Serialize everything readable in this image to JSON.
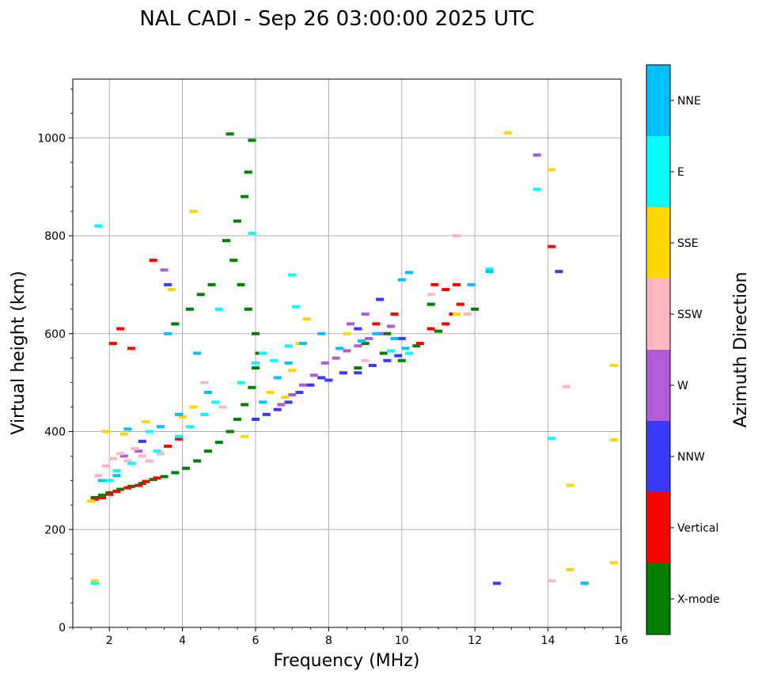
{
  "chart_data": {
    "type": "scatter",
    "title": "NAL CADI - Sep 26 03:00:00 2025 UTC",
    "xlabel": "Frequency (MHz)",
    "ylabel": "Virtual height (km)",
    "xlim": [
      1,
      16
    ],
    "ylim": [
      0,
      1120
    ],
    "x_ticks": [
      2,
      4,
      6,
      8,
      10,
      12,
      14,
      16
    ],
    "y_ticks": [
      0,
      200,
      400,
      600,
      800,
      1000
    ],
    "grid": true,
    "colorbar": {
      "label": "Azimuth Direction",
      "categories": [
        "X-mode",
        "Vertical",
        "NNW",
        "W",
        "SSW",
        "SSE",
        "E",
        "NNE"
      ],
      "colors": [
        "#008000",
        "#ff0000",
        "#3a3aff",
        "#b25bd6",
        "#ffb6c1",
        "#ffd700",
        "#00ffff",
        "#00bfff"
      ]
    },
    "series": [
      {
        "name": "X-mode",
        "points": [
          [
            1.6,
            265
          ],
          [
            1.8,
            270
          ],
          [
            2.0,
            275
          ],
          [
            2.3,
            282
          ],
          [
            2.6,
            288
          ],
          [
            2.9,
            294
          ],
          [
            3.2,
            302
          ],
          [
            3.5,
            308
          ],
          [
            3.8,
            316
          ],
          [
            4.1,
            325
          ],
          [
            4.4,
            340
          ],
          [
            4.7,
            360
          ],
          [
            5.0,
            378
          ],
          [
            5.3,
            400
          ],
          [
            5.5,
            425
          ],
          [
            5.7,
            455
          ],
          [
            5.9,
            490
          ],
          [
            6.0,
            530
          ],
          [
            6.1,
            560
          ],
          [
            6.0,
            600
          ],
          [
            5.8,
            650
          ],
          [
            5.6,
            700
          ],
          [
            5.4,
            750
          ],
          [
            5.2,
            790
          ],
          [
            5.5,
            830
          ],
          [
            5.7,
            880
          ],
          [
            5.8,
            930
          ],
          [
            5.9,
            995
          ],
          [
            5.3,
            1008
          ],
          [
            4.2,
            650
          ],
          [
            4.5,
            680
          ],
          [
            4.8,
            700
          ],
          [
            3.8,
            620
          ],
          [
            9.0,
            580
          ],
          [
            9.5,
            560
          ],
          [
            10.0,
            545
          ],
          [
            10.4,
            575
          ],
          [
            11.0,
            605
          ],
          [
            11.5,
            640
          ],
          [
            12.0,
            650
          ],
          [
            8.8,
            530
          ],
          [
            9.6,
            600
          ],
          [
            10.8,
            660
          ]
        ]
      },
      {
        "name": "Vertical",
        "points": [
          [
            1.6,
            262
          ],
          [
            1.8,
            265
          ],
          [
            2.0,
            272
          ],
          [
            2.2,
            278
          ],
          [
            2.5,
            285
          ],
          [
            2.8,
            290
          ],
          [
            3.0,
            298
          ],
          [
            3.3,
            305
          ],
          [
            3.6,
            370
          ],
          [
            3.9,
            385
          ],
          [
            2.1,
            580
          ],
          [
            2.3,
            610
          ],
          [
            2.6,
            570
          ],
          [
            3.2,
            750
          ],
          [
            10.5,
            580
          ],
          [
            10.8,
            610
          ],
          [
            11.2,
            620
          ],
          [
            11.4,
            640
          ],
          [
            11.6,
            660
          ],
          [
            11.2,
            690
          ],
          [
            11.5,
            700
          ],
          [
            10.9,
            700
          ],
          [
            9.8,
            640
          ],
          [
            9.3,
            620
          ],
          [
            14.1,
            778
          ]
        ]
      },
      {
        "name": "NNW",
        "points": [
          [
            6.0,
            425
          ],
          [
            6.3,
            435
          ],
          [
            6.6,
            445
          ],
          [
            6.9,
            460
          ],
          [
            7.2,
            480
          ],
          [
            7.5,
            495
          ],
          [
            7.8,
            510
          ],
          [
            8.0,
            505
          ],
          [
            8.4,
            520
          ],
          [
            8.8,
            520
          ],
          [
            9.2,
            535
          ],
          [
            9.6,
            545
          ],
          [
            9.9,
            555
          ],
          [
            10.0,
            590
          ],
          [
            9.4,
            670
          ],
          [
            8.8,
            610
          ],
          [
            3.6,
            700
          ],
          [
            12.6,
            90
          ],
          [
            14.3,
            727
          ],
          [
            2.9,
            380
          ]
        ]
      },
      {
        "name": "W",
        "points": [
          [
            6.7,
            455
          ],
          [
            7.0,
            475
          ],
          [
            7.3,
            495
          ],
          [
            7.6,
            515
          ],
          [
            7.9,
            540
          ],
          [
            8.2,
            550
          ],
          [
            8.5,
            565
          ],
          [
            8.8,
            575
          ],
          [
            9.1,
            590
          ],
          [
            9.4,
            600
          ],
          [
            9.7,
            615
          ],
          [
            9.0,
            640
          ],
          [
            8.6,
            620
          ],
          [
            13.7,
            965
          ],
          [
            3.5,
            730
          ],
          [
            2.8,
            360
          ],
          [
            2.4,
            350
          ]
        ]
      },
      {
        "name": "SSW",
        "points": [
          [
            1.7,
            310
          ],
          [
            1.9,
            330
          ],
          [
            2.1,
            345
          ],
          [
            2.3,
            355
          ],
          [
            2.5,
            340
          ],
          [
            2.7,
            365
          ],
          [
            2.9,
            350
          ],
          [
            3.1,
            340
          ],
          [
            3.4,
            355
          ],
          [
            4.6,
            500
          ],
          [
            5.1,
            450
          ],
          [
            11.8,
            640
          ],
          [
            11.5,
            800
          ],
          [
            9.0,
            545
          ],
          [
            14.5,
            492
          ],
          [
            14.1,
            95
          ],
          [
            10.8,
            680
          ]
        ]
      },
      {
        "name": "SSE",
        "points": [
          [
            1.5,
            258
          ],
          [
            1.6,
            95
          ],
          [
            1.9,
            400
          ],
          [
            2.4,
            395
          ],
          [
            3.0,
            420
          ],
          [
            3.7,
            690
          ],
          [
            4.0,
            430
          ],
          [
            4.3,
            450
          ],
          [
            4.3,
            850
          ],
          [
            5.7,
            390
          ],
          [
            6.4,
            480
          ],
          [
            6.8,
            470
          ],
          [
            7.2,
            580
          ],
          [
            7.0,
            525
          ],
          [
            7.4,
            630
          ],
          [
            8.5,
            600
          ],
          [
            12.9,
            1010
          ],
          [
            14.1,
            935
          ],
          [
            14.6,
            290
          ],
          [
            14.6,
            118
          ],
          [
            15.8,
            535
          ],
          [
            15.8,
            383
          ],
          [
            15.8,
            132
          ],
          [
            11.5,
            640
          ]
        ]
      },
      {
        "name": "E",
        "points": [
          [
            1.7,
            820
          ],
          [
            1.6,
            90
          ],
          [
            2.0,
            300
          ],
          [
            2.2,
            320
          ],
          [
            2.6,
            335
          ],
          [
            3.3,
            360
          ],
          [
            3.9,
            390
          ],
          [
            4.2,
            410
          ],
          [
            4.6,
            435
          ],
          [
            4.9,
            460
          ],
          [
            5.6,
            500
          ],
          [
            6.0,
            540
          ],
          [
            6.2,
            560
          ],
          [
            6.5,
            545
          ],
          [
            6.9,
            575
          ],
          [
            7.1,
            655
          ],
          [
            7.0,
            720
          ],
          [
            5.9,
            805
          ],
          [
            5.0,
            650
          ],
          [
            3.1,
            400
          ],
          [
            13.7,
            895
          ],
          [
            14.1,
            386
          ],
          [
            15.0,
            90
          ],
          [
            12.4,
            732
          ],
          [
            9.7,
            565
          ],
          [
            10.2,
            560
          ]
        ]
      },
      {
        "name": "NNE",
        "points": [
          [
            1.8,
            300
          ],
          [
            2.2,
            310
          ],
          [
            2.5,
            405
          ],
          [
            3.4,
            410
          ],
          [
            3.9,
            435
          ],
          [
            4.4,
            560
          ],
          [
            4.7,
            480
          ],
          [
            6.2,
            460
          ],
          [
            6.6,
            510
          ],
          [
            6.9,
            540
          ],
          [
            7.3,
            580
          ],
          [
            7.8,
            600
          ],
          [
            8.3,
            570
          ],
          [
            8.9,
            585
          ],
          [
            9.3,
            600
          ],
          [
            9.8,
            590
          ],
          [
            10.1,
            570
          ],
          [
            10.2,
            725
          ],
          [
            10.0,
            710
          ],
          [
            11.9,
            700
          ],
          [
            12.4,
            727
          ],
          [
            15.0,
            90
          ],
          [
            3.6,
            600
          ]
        ]
      }
    ]
  }
}
